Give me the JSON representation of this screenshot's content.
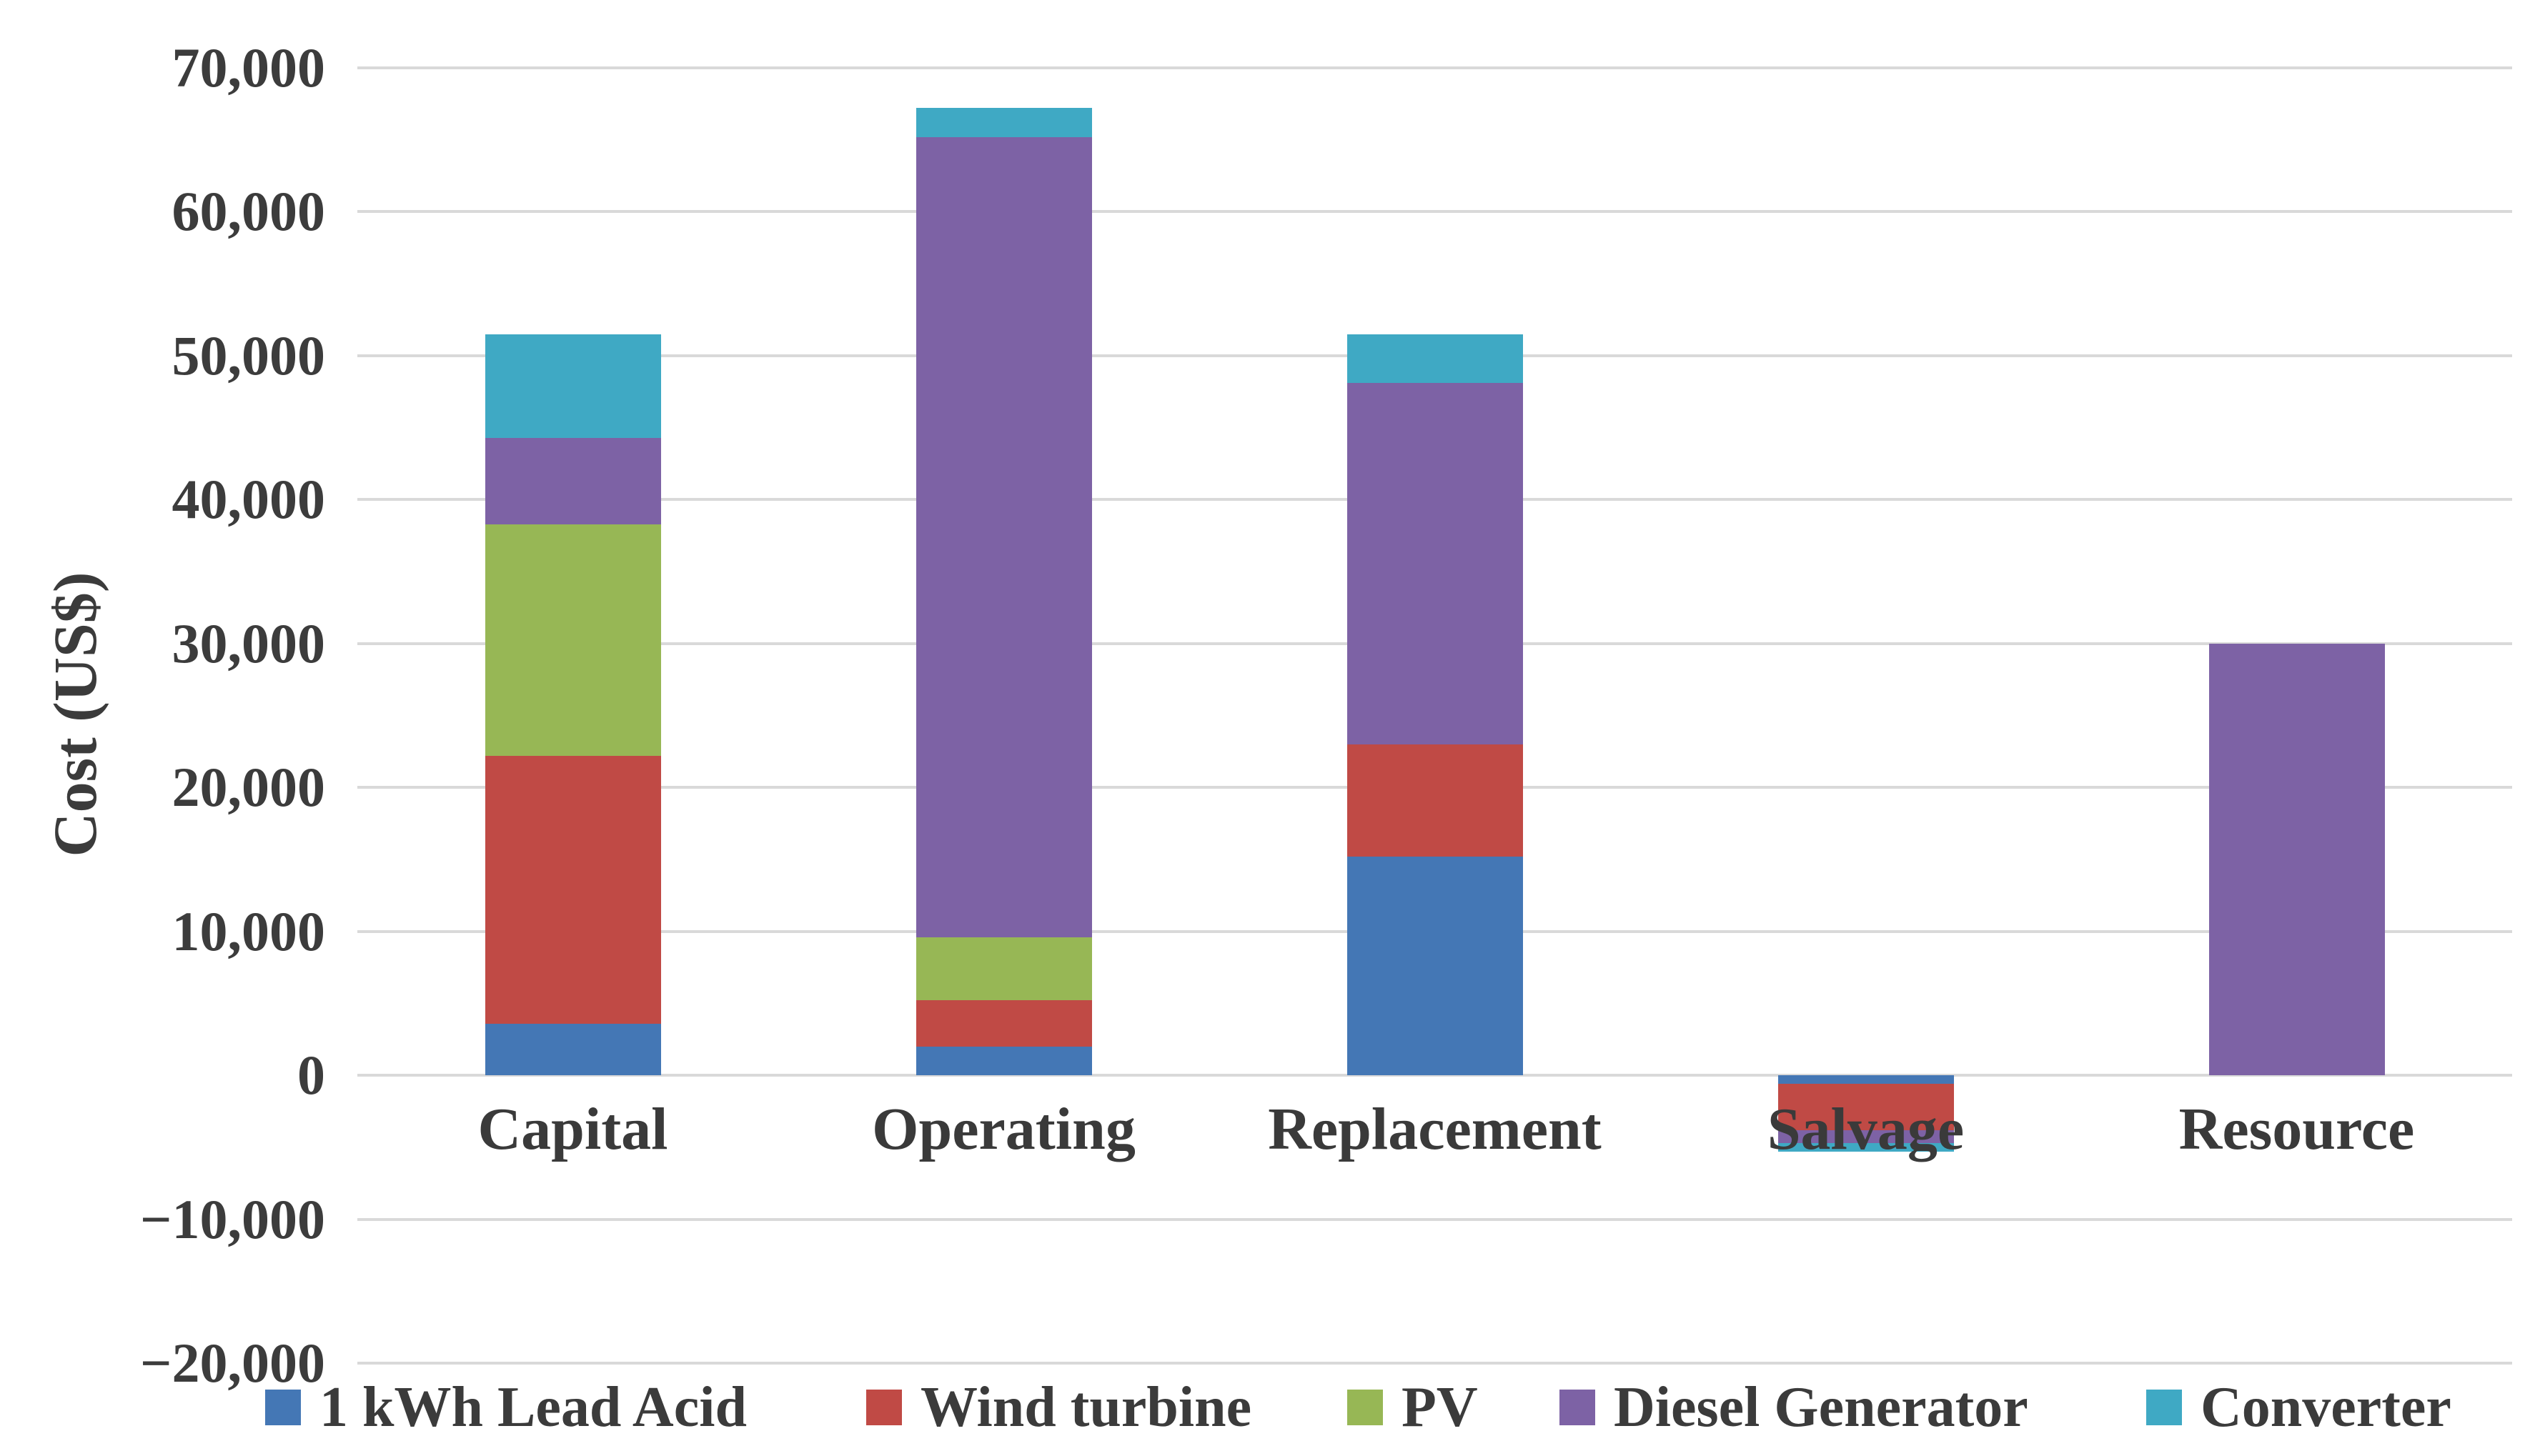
{
  "chart_data": {
    "type": "bar",
    "variant": "stacked-vertical",
    "title": "",
    "xlabel": "",
    "ylabel": "Cost (US$)",
    "categories": [
      "Capital",
      "Operating",
      "Replacement",
      "Salvage",
      "Resource"
    ],
    "series": [
      {
        "name": "1 kWh Lead Acid",
        "color": "#4477b5",
        "values": [
          3600,
          2000,
          15200,
          -600,
          0
        ]
      },
      {
        "name": "Wind turbine",
        "color": "#c04a45",
        "values": [
          18600,
          3200,
          7800,
          -3200,
          0
        ]
      },
      {
        "name": "PV",
        "color": "#97b755",
        "values": [
          16100,
          4400,
          0,
          0,
          0
        ]
      },
      {
        "name": "Diesel Generator",
        "color": "#7d62a5",
        "values": [
          6000,
          55600,
          25100,
          -900,
          30000
        ]
      },
      {
        "name": "Converter",
        "color": "#3fa9c4",
        "values": [
          7200,
          2000,
          3400,
          -600,
          0
        ]
      }
    ],
    "category_totals": [
      51500,
      67200,
      51500,
      -5300,
      30000
    ],
    "ylim": [
      -20000,
      70000
    ],
    "ytick_step": 10000,
    "ytick_labels": [
      "70,000",
      "60,000",
      "50,000",
      "40,000",
      "30,000",
      "20,000",
      "10,000",
      "0",
      "−10,000",
      "−20,000"
    ],
    "grid": true,
    "gridline_color": "#d9d9d9",
    "text_color": "#3b3b3b",
    "background_color": "#ffffff",
    "legend_position": "bottom",
    "legend_labels": [
      "1 kWh Lead Acid",
      "Wind turbine",
      "PV",
      "Diesel Generator",
      "Converter"
    ]
  }
}
